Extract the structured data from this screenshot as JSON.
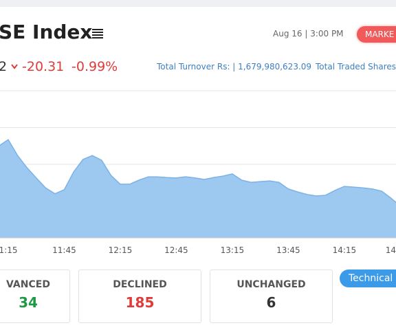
{
  "header": {
    "title": "SE Index",
    "last_value": "2",
    "change": "-20.31",
    "change_percent": "-0.99%",
    "date_time": "Aug 16 | 3:00 PM",
    "market_button": "MARKE",
    "turnover": "Total Turnover Rs: | 1,679,980,623.09",
    "traded_shares": "Total Traded Shares"
  },
  "chart_data": {
    "type": "area",
    "color": "#9dc8f0",
    "line_color": "#7cb2e6",
    "categories": [
      null,
      "1:15",
      null,
      null,
      null,
      null,
      null,
      "11:45",
      null,
      null,
      null,
      null,
      null,
      "12:15",
      null,
      null,
      null,
      null,
      null,
      "12:45",
      null,
      null,
      null,
      null,
      null,
      "13:15",
      null,
      null,
      null,
      null,
      null,
      "13:45",
      null,
      null,
      null,
      null,
      null,
      "14:15",
      null,
      null,
      null,
      null,
      null,
      "14"
    ],
    "values": [
      2.5,
      2.67,
      2.24,
      1.91,
      1.63,
      1.36,
      1.2,
      1.31,
      1.79,
      2.13,
      2.24,
      2.11,
      1.7,
      1.46,
      1.46,
      1.57,
      1.66,
      1.66,
      1.64,
      1.63,
      1.66,
      1.63,
      1.59,
      1.64,
      1.68,
      1.74,
      1.57,
      1.51,
      1.53,
      1.55,
      1.51,
      1.33,
      1.25,
      1.18,
      1.14,
      1.16,
      1.29,
      1.4,
      1.38,
      1.36,
      1.33,
      1.27,
      1.08,
      0.86
    ],
    "ylim": [
      0,
      4
    ],
    "grid_lines": [
      1,
      2,
      3,
      4
    ],
    "grid": true
  },
  "stats": [
    {
      "label": "VANCED",
      "value": "34",
      "color": "#1e9a45"
    },
    {
      "label": "DECLINED",
      "value": "185",
      "color": "#e03b3b"
    },
    {
      "label": "UNCHANGED",
      "value": "6",
      "color": "#333333"
    }
  ],
  "technical_button": "Technical"
}
